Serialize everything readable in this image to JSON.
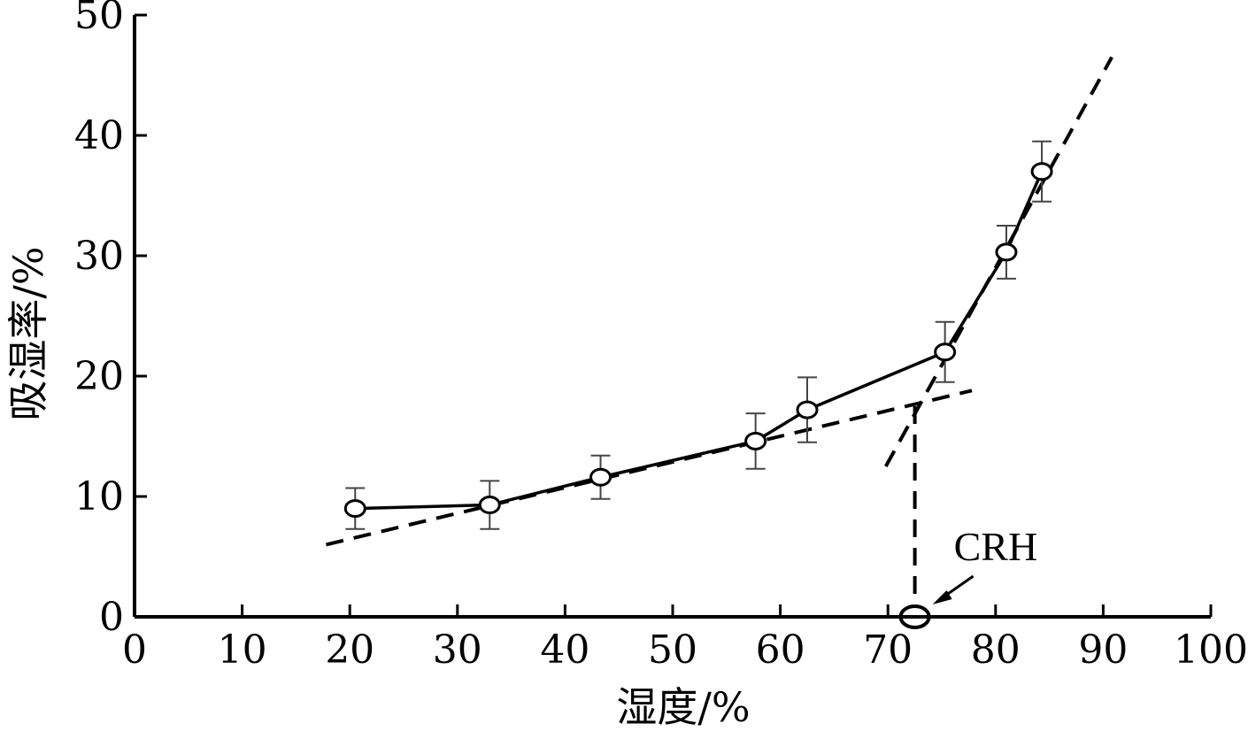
{
  "chart_data": {
    "type": "line",
    "title": "",
    "xlabel": "湿度/%",
    "ylabel": "吸湿率/%",
    "xlim": [
      0,
      100
    ],
    "ylim": [
      0,
      50
    ],
    "x_ticks": [
      0,
      10,
      20,
      30,
      40,
      50,
      60,
      70,
      80,
      90,
      100
    ],
    "y_ticks": [
      0,
      10,
      20,
      30,
      40,
      50
    ],
    "grid": false,
    "series": [
      {
        "x": [
          20.5,
          33.0,
          43.3,
          57.7,
          62.5,
          75.3,
          81.0,
          84.3
        ],
        "y": [
          9.0,
          9.3,
          11.6,
          14.6,
          17.2,
          22.0,
          30.3,
          37.0
        ],
        "error": [
          1.7,
          2.0,
          1.8,
          2.3,
          2.7,
          2.5,
          2.2,
          2.5
        ],
        "marker": "open-circle",
        "line": "solid"
      }
    ],
    "fit_lines": [
      {
        "style": "dashed",
        "from": [
          17.8,
          6.0
        ],
        "to": [
          77.8,
          18.8
        ]
      },
      {
        "style": "dashed",
        "from": [
          69.8,
          12.5
        ],
        "to": [
          90.8,
          46.5
        ]
      }
    ],
    "annotations": [
      {
        "text": "CRH",
        "x": 72.5,
        "y": 0,
        "drop_line_from_y": 17.5
      }
    ]
  }
}
